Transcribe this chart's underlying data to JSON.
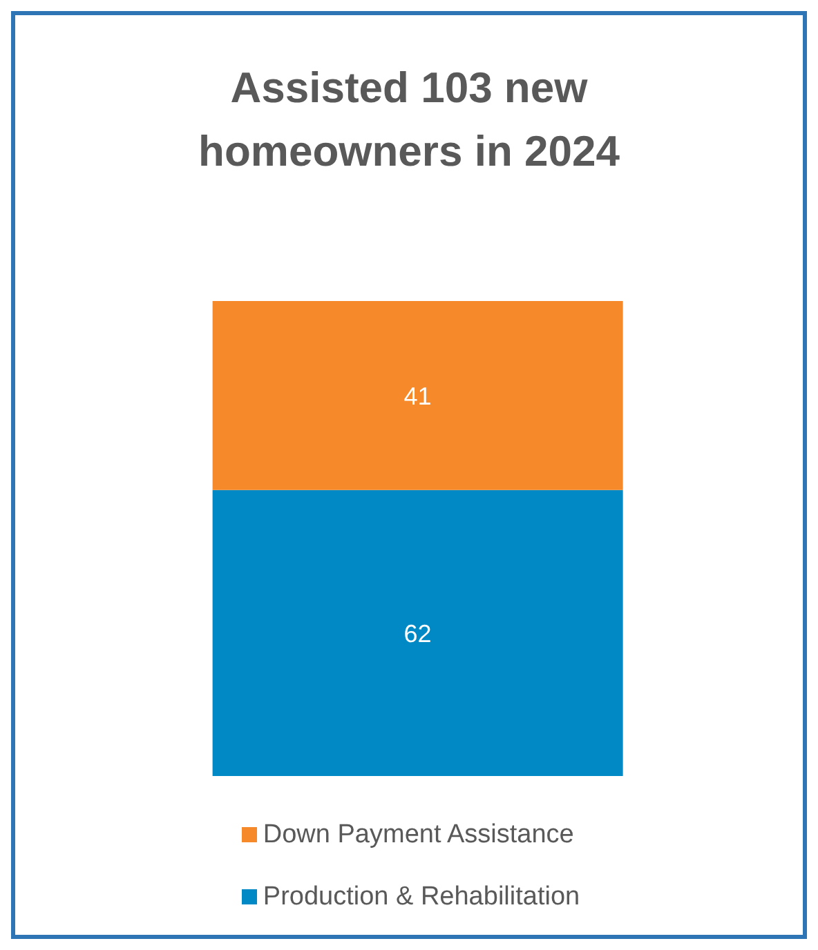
{
  "chart_data": {
    "type": "bar",
    "title": "Assisted 103 new homeowners in 2024",
    "categories": [
      null
    ],
    "stacked": true,
    "data_labels": true,
    "legend": "bottom",
    "series": [
      {
        "name": "Production & Rehabilitation",
        "color": "#0089c4",
        "values": [
          62
        ]
      },
      {
        "name": "Down Payment Assistance",
        "color": "#f68a2b",
        "values": [
          41
        ]
      }
    ]
  }
}
